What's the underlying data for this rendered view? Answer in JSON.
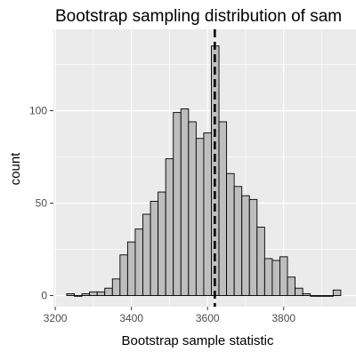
{
  "chart_data": {
    "type": "bar",
    "title": "Bootstrap sampling distribution of sam",
    "xlabel": "Bootstrap sample statistic",
    "ylabel": "count",
    "xlim": [
      3195,
      3990
    ],
    "ylim": [
      -6,
      144
    ],
    "x_ticks": [
      3200,
      3400,
      3600,
      3800
    ],
    "y_ticks": [
      0,
      50,
      100
    ],
    "bin_width": 20,
    "bins": [
      {
        "x0": 3230,
        "count": 1
      },
      {
        "x0": 3250,
        "count": 0
      },
      {
        "x0": 3270,
        "count": 1
      },
      {
        "x0": 3290,
        "count": 2
      },
      {
        "x0": 3310,
        "count": 2
      },
      {
        "x0": 3330,
        "count": 4
      },
      {
        "x0": 3350,
        "count": 9
      },
      {
        "x0": 3370,
        "count": 22
      },
      {
        "x0": 3390,
        "count": 29
      },
      {
        "x0": 3410,
        "count": 36
      },
      {
        "x0": 3430,
        "count": 44
      },
      {
        "x0": 3450,
        "count": 51
      },
      {
        "x0": 3470,
        "count": 56
      },
      {
        "x0": 3490,
        "count": 74
      },
      {
        "x0": 3510,
        "count": 99
      },
      {
        "x0": 3530,
        "count": 101
      },
      {
        "x0": 3550,
        "count": 94
      },
      {
        "x0": 3570,
        "count": 85
      },
      {
        "x0": 3590,
        "count": 88
      },
      {
        "x0": 3610,
        "count": 135
      },
      {
        "x0": 3630,
        "count": 94
      },
      {
        "x0": 3650,
        "count": 66
      },
      {
        "x0": 3670,
        "count": 59
      },
      {
        "x0": 3690,
        "count": 54
      },
      {
        "x0": 3710,
        "count": 52
      },
      {
        "x0": 3730,
        "count": 37
      },
      {
        "x0": 3750,
        "count": 20
      },
      {
        "x0": 3770,
        "count": 19
      },
      {
        "x0": 3790,
        "count": 21
      },
      {
        "x0": 3810,
        "count": 10
      },
      {
        "x0": 3830,
        "count": 4
      },
      {
        "x0": 3850,
        "count": 1
      },
      {
        "x0": 3870,
        "count": 0
      },
      {
        "x0": 3890,
        "count": 0
      },
      {
        "x0": 3910,
        "count": 0
      },
      {
        "x0": 3930,
        "count": 3
      }
    ],
    "reference_line": {
      "x": 3619,
      "style": "dashed",
      "color": "#000000"
    },
    "grid": true,
    "colors": {
      "panel_background": "#ebebeb",
      "grid_major": "#ffffff",
      "bar_fill": "#bebebe",
      "bar_stroke": "#000000",
      "text": "#000000",
      "tick_label": "#4d4d4d"
    }
  }
}
